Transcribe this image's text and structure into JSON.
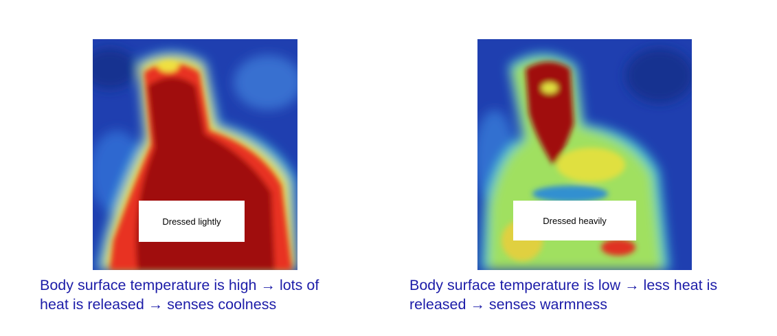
{
  "panels": [
    {
      "label": "Dressed lightly",
      "caption_lines": [
        "Body surface temperature is high → lots of",
        "heat is released → senses coolness"
      ]
    },
    {
      "label": "Dressed heavily",
      "caption_lines": [
        "Body surface temperature is low → less heat is",
        "released → senses warmness"
      ]
    }
  ]
}
